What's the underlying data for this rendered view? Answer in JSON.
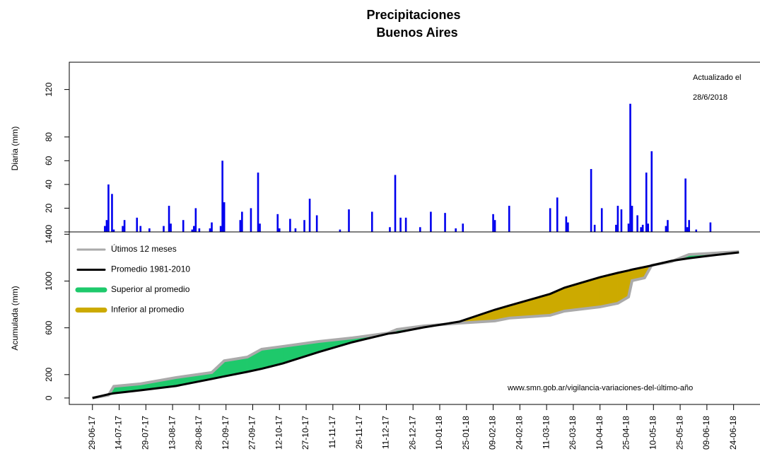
{
  "chart_data": [
    {
      "type": "bar",
      "title": "Precipitaciones",
      "subtitle": "Buenos Aires",
      "ylabel": "Diaria (mm)",
      "annotations": [
        "Actualizado el",
        "28/6/2018"
      ],
      "color": "#0000ee",
      "xlim": [
        "16-06-17",
        "12-07-18"
      ],
      "ylim": [
        0,
        143
      ],
      "yticks": [
        0,
        20,
        40,
        60,
        80,
        120
      ],
      "x": [
        "06-07-17",
        "07-07-17",
        "08-07-17",
        "10-07-17",
        "11-07-17",
        "16-07-17",
        "17-07-17",
        "24-07-17",
        "26-07-17",
        "31-07-17",
        "08-08-17",
        "11-08-17",
        "12-08-17",
        "19-08-17",
        "24-08-17",
        "25-08-17",
        "26-08-17",
        "28-08-17",
        "03-09-17",
        "04-09-17",
        "09-09-17",
        "10-09-17",
        "11-09-17",
        "20-09-17",
        "21-09-17",
        "26-09-17",
        "30-09-17",
        "01-10-17",
        "11-10-17",
        "12-10-17",
        "18-10-17",
        "21-10-17",
        "26-10-17",
        "29-10-17",
        "02-11-17",
        "15-11-17",
        "20-11-17",
        "03-12-17",
        "13-12-17",
        "16-12-17",
        "19-12-17",
        "22-12-17",
        "30-12-17",
        "05-01-18",
        "13-01-18",
        "19-01-18",
        "23-01-18",
        "09-02-18",
        "10-02-18",
        "18-02-18",
        "13-03-18",
        "17-03-18",
        "22-03-18",
        "23-03-18",
        "05-04-18",
        "07-04-18",
        "11-04-18",
        "19-04-18",
        "20-04-18",
        "22-04-18",
        "26-04-18",
        "27-04-18",
        "28-04-18",
        "01-05-18",
        "03-05-18",
        "04-05-18",
        "06-05-18",
        "07-05-18",
        "09-05-18",
        "17-05-18",
        "18-05-18",
        "28-05-18",
        "29-05-18",
        "30-05-18",
        "03-06-18",
        "11-06-18"
      ],
      "values": [
        5,
        10,
        40,
        32,
        2,
        5,
        10,
        12,
        5,
        3,
        5,
        22,
        7,
        10,
        2,
        5,
        20,
        3,
        3,
        8,
        5,
        60,
        25,
        10,
        17,
        20,
        50,
        7,
        15,
        3,
        11,
        3,
        10,
        28,
        14,
        2,
        19,
        17,
        4,
        48,
        12,
        12,
        4,
        17,
        16,
        3,
        7,
        15,
        10,
        22,
        20,
        29,
        13,
        8,
        53,
        6,
        20,
        6,
        22,
        19,
        7,
        108,
        22,
        14,
        4,
        6,
        50,
        7,
        68,
        5,
        10,
        45,
        4,
        10,
        2,
        8
      ]
    },
    {
      "type": "line",
      "ylabel": "Acumulada (mm)",
      "annotation": "www.smn.gob.ar/vigilancia-variaciones-del-último-año",
      "legend": "upper left",
      "xlim": [
        "16-06-17",
        "12-07-18"
      ],
      "ylim": [
        -55,
        1420
      ],
      "yticks": [
        0,
        200,
        600,
        1000,
        1400
      ],
      "xticks": [
        "29-06-17",
        "14-07-17",
        "29-07-17",
        "13-08-17",
        "28-08-17",
        "12-09-17",
        "27-09-17",
        "12-10-17",
        "27-10-17",
        "11-11-17",
        "26-11-17",
        "11-12-17",
        "26-12-17",
        "10-01-18",
        "25-01-18",
        "09-02-18",
        "24-02-18",
        "11-03-18",
        "26-03-18",
        "10-04-18",
        "25-04-18",
        "10-05-18",
        "25-05-18",
        "09-06-18",
        "24-06-18"
      ],
      "x": [
        "29-06-17",
        "08-07-17",
        "11-07-17",
        "26-07-17",
        "15-08-17",
        "04-09-17",
        "11-09-17",
        "24-09-17",
        "02-10-17",
        "14-10-17",
        "03-11-17",
        "22-11-17",
        "12-12-17",
        "17-12-17",
        "01-01-18",
        "21-01-18",
        "10-02-18",
        "18-02-18",
        "13-03-18",
        "21-03-18",
        "10-04-18",
        "20-04-18",
        "26-04-18",
        "28-04-18",
        "05-05-18",
        "09-05-18",
        "20-05-18",
        "30-05-18",
        "09-06-18",
        "27-06-18"
      ],
      "series": [
        {
          "name": "Útimos 12 meses",
          "color": "#aaaaaa",
          "values": [
            0,
            25,
            100,
            121,
            175,
            218,
            318,
            350,
            417,
            441,
            483,
            514,
            555,
            586,
            616,
            640,
            659,
            683,
            707,
            743,
            779,
            810,
            864,
            1003,
            1027,
            1135,
            1166,
            1227,
            1235,
            1251
          ]
        },
        {
          "name": "Promedio 1981-2010",
          "color": "#000000",
          "values": [
            0,
            32,
            40,
            66,
            103,
            163,
            185,
            224,
            250,
            296,
            393,
            477,
            550,
            560,
            604,
            653,
            755,
            790,
            890,
            943,
            1033,
            1070,
            1090,
            1098,
            1120,
            1133,
            1172,
            1195,
            1214,
            1245
          ]
        }
      ],
      "fills": [
        {
          "name": "Superior al promedio",
          "color": "#1ec96b"
        },
        {
          "name": "Inferior al promedio",
          "color": "#ccaa00"
        }
      ]
    }
  ]
}
